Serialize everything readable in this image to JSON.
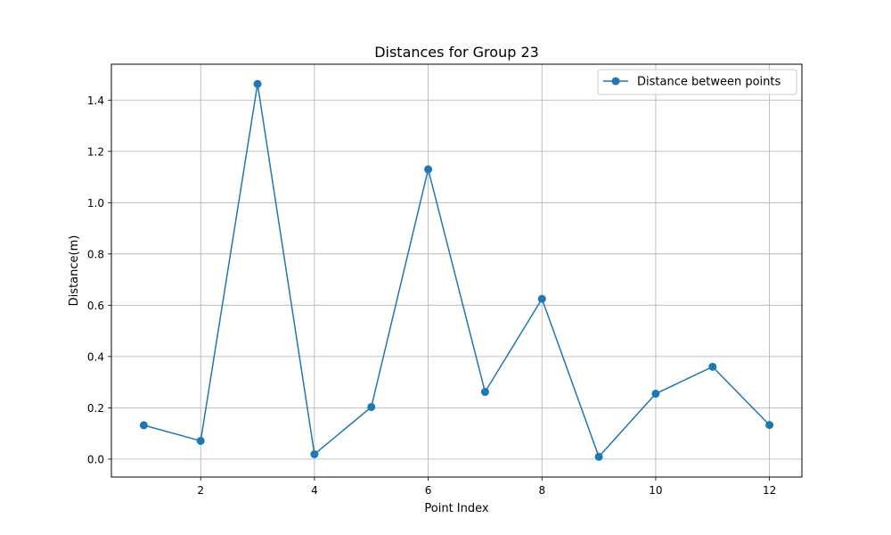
{
  "chart_data": {
    "type": "line",
    "title": "Distances for Group 23",
    "xlabel": "Point Index",
    "ylabel": "Distance(m)",
    "xlim": [
      0.43,
      12.57
    ],
    "ylim": [
      -0.07,
      1.54
    ],
    "xticks": [
      2,
      4,
      6,
      8,
      10,
      12
    ],
    "yticks": [
      0.0,
      0.2,
      0.4,
      0.6,
      0.8,
      1.0,
      1.2,
      1.4
    ],
    "grid": true,
    "legend_position": "top-right",
    "series": [
      {
        "name": "Distance between points",
        "color": "#1f77b4",
        "marker": "circle",
        "x": [
          1,
          2,
          3,
          4,
          5,
          6,
          7,
          8,
          9,
          10,
          11,
          12
        ],
        "y": [
          0.132,
          0.071,
          1.463,
          0.019,
          0.203,
          1.13,
          0.262,
          0.625,
          0.009,
          0.255,
          0.36,
          0.133
        ]
      }
    ]
  }
}
